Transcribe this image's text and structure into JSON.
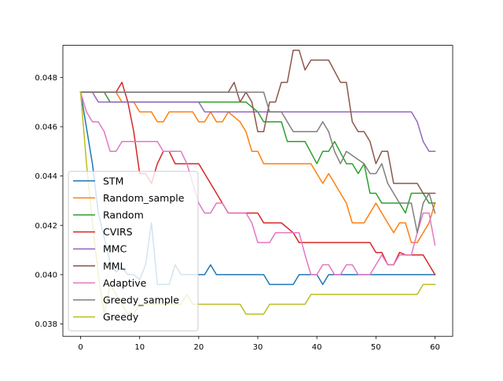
{
  "chart_data": {
    "type": "line",
    "title": "",
    "xlabel": "",
    "ylabel": "",
    "xlim": [
      -3,
      63
    ],
    "ylim": [
      0.0375,
      0.0493
    ],
    "xticks": [
      0,
      10,
      20,
      30,
      40,
      50,
      60
    ],
    "yticks": [
      0.038,
      0.04,
      0.042,
      0.044,
      0.046,
      0.048
    ],
    "xtick_labels": [
      "0",
      "10",
      "20",
      "30",
      "40",
      "50",
      "60"
    ],
    "ytick_labels": [
      "0.038",
      "0.040",
      "0.042",
      "0.044",
      "0.046",
      "0.048"
    ],
    "grid": false,
    "legend_position": "lower-left",
    "series": [
      {
        "name": "STM",
        "color": "#1f77b4",
        "points": [
          [
            0,
            0.0474
          ],
          [
            2,
            0.0445
          ],
          [
            3,
            0.0425
          ],
          [
            4,
            0.0415
          ],
          [
            5,
            0.0405
          ],
          [
            6,
            0.0401
          ],
          [
            7,
            0.0403
          ],
          [
            8,
            0.04
          ],
          [
            9,
            0.04
          ],
          [
            10,
            0.0398
          ],
          [
            11,
            0.0404
          ],
          [
            12,
            0.0421
          ],
          [
            13,
            0.0396
          ],
          [
            14,
            0.0396
          ],
          [
            15,
            0.0396
          ],
          [
            16,
            0.0404
          ],
          [
            17,
            0.04
          ],
          [
            18,
            0.04
          ],
          [
            21,
            0.04
          ],
          [
            22,
            0.0404
          ],
          [
            23,
            0.04
          ],
          [
            31,
            0.04
          ],
          [
            32,
            0.0396
          ],
          [
            36,
            0.0396
          ],
          [
            37,
            0.04
          ],
          [
            40,
            0.04
          ],
          [
            41,
            0.0396
          ],
          [
            42,
            0.04
          ],
          [
            60,
            0.04
          ]
        ]
      },
      {
        "name": "Random_sample",
        "color": "#ff7f0e",
        "points": [
          [
            0,
            0.0474
          ],
          [
            6,
            0.0474
          ],
          [
            7,
            0.047
          ],
          [
            9,
            0.047
          ],
          [
            10,
            0.0466
          ],
          [
            12,
            0.0466
          ],
          [
            13,
            0.0462
          ],
          [
            14,
            0.0462
          ],
          [
            15,
            0.0466
          ],
          [
            19,
            0.0466
          ],
          [
            20,
            0.0462
          ],
          [
            21,
            0.0462
          ],
          [
            22,
            0.0466
          ],
          [
            23,
            0.0462
          ],
          [
            24,
            0.0462
          ],
          [
            25,
            0.0466
          ],
          [
            27,
            0.0462
          ],
          [
            28,
            0.0458
          ],
          [
            29,
            0.045
          ],
          [
            30,
            0.045
          ],
          [
            31,
            0.0445
          ],
          [
            39,
            0.0445
          ],
          [
            40,
            0.0441
          ],
          [
            41,
            0.0437
          ],
          [
            42,
            0.0441
          ],
          [
            44,
            0.0433
          ],
          [
            45,
            0.0429
          ],
          [
            46,
            0.0421
          ],
          [
            48,
            0.0421
          ],
          [
            50,
            0.0429
          ],
          [
            51,
            0.0425
          ],
          [
            53,
            0.0417
          ],
          [
            54,
            0.0421
          ],
          [
            55,
            0.0421
          ],
          [
            56,
            0.0413
          ],
          [
            57,
            0.0413
          ],
          [
            59,
            0.0421
          ],
          [
            60,
            0.0429
          ]
        ]
      },
      {
        "name": "Random",
        "color": "#2ca02c",
        "points": [
          [
            0,
            0.0474
          ],
          [
            4,
            0.0474
          ],
          [
            5,
            0.047
          ],
          [
            20,
            0.047
          ],
          [
            28,
            0.047
          ],
          [
            30,
            0.0466
          ],
          [
            31,
            0.0462
          ],
          [
            34,
            0.0462
          ],
          [
            35,
            0.0454
          ],
          [
            38,
            0.0454
          ],
          [
            40,
            0.0445
          ],
          [
            41,
            0.045
          ],
          [
            42,
            0.045
          ],
          [
            43,
            0.0454
          ],
          [
            45,
            0.0445
          ],
          [
            46,
            0.0445
          ],
          [
            47,
            0.0441
          ],
          [
            48,
            0.0445
          ],
          [
            49,
            0.0433
          ],
          [
            50,
            0.0433
          ],
          [
            51,
            0.0429
          ],
          [
            54,
            0.0429
          ],
          [
            55,
            0.0425
          ],
          [
            56,
            0.0433
          ],
          [
            58,
            0.0433
          ],
          [
            59,
            0.0429
          ],
          [
            60,
            0.0429
          ]
        ]
      },
      {
        "name": "CVIRS",
        "color": "#d62728",
        "points": [
          [
            0,
            0.0474
          ],
          [
            6,
            0.0474
          ],
          [
            7,
            0.0478
          ],
          [
            8,
            0.047
          ],
          [
            9,
            0.0458
          ],
          [
            10,
            0.0441
          ],
          [
            11,
            0.0441
          ],
          [
            12,
            0.0437
          ],
          [
            13,
            0.0445
          ],
          [
            14,
            0.045
          ],
          [
            15,
            0.045
          ],
          [
            16,
            0.0445
          ],
          [
            20,
            0.0445
          ],
          [
            21,
            0.0441
          ],
          [
            22,
            0.0437
          ],
          [
            23,
            0.0433
          ],
          [
            24,
            0.0429
          ],
          [
            25,
            0.0425
          ],
          [
            30,
            0.0425
          ],
          [
            31,
            0.0421
          ],
          [
            34,
            0.0421
          ],
          [
            36,
            0.0417
          ],
          [
            37,
            0.0413
          ],
          [
            49,
            0.0413
          ],
          [
            50,
            0.0409
          ],
          [
            51,
            0.0409
          ],
          [
            52,
            0.0404
          ],
          [
            53,
            0.0404
          ],
          [
            54,
            0.0409
          ],
          [
            55,
            0.0408
          ],
          [
            58,
            0.0408
          ],
          [
            59,
            0.0404
          ],
          [
            60,
            0.04
          ]
        ]
      },
      {
        "name": "MMC",
        "color": "#9467bd",
        "points": [
          [
            0,
            0.0474
          ],
          [
            2,
            0.0474
          ],
          [
            3,
            0.047
          ],
          [
            20,
            0.047
          ],
          [
            21,
            0.0466
          ],
          [
            56,
            0.0466
          ],
          [
            57,
            0.0462
          ],
          [
            58,
            0.0454
          ],
          [
            59,
            0.045
          ],
          [
            60,
            0.045
          ]
        ]
      },
      {
        "name": "MML",
        "color": "#8c564b",
        "points": [
          [
            0,
            0.0474
          ],
          [
            25,
            0.0474
          ],
          [
            26,
            0.0478
          ],
          [
            27,
            0.047
          ],
          [
            28,
            0.0474
          ],
          [
            29,
            0.047
          ],
          [
            30,
            0.0458
          ],
          [
            31,
            0.0458
          ],
          [
            32,
            0.047
          ],
          [
            33,
            0.047
          ],
          [
            34,
            0.0478
          ],
          [
            35,
            0.0478
          ],
          [
            36,
            0.0491
          ],
          [
            37,
            0.0491
          ],
          [
            38,
            0.0483
          ],
          [
            39,
            0.0487
          ],
          [
            42,
            0.0487
          ],
          [
            44,
            0.0478
          ],
          [
            45,
            0.0478
          ],
          [
            46,
            0.0462
          ],
          [
            47,
            0.0458
          ],
          [
            48,
            0.0458
          ],
          [
            49,
            0.0454
          ],
          [
            50,
            0.0445
          ],
          [
            51,
            0.045
          ],
          [
            52,
            0.045
          ],
          [
            53,
            0.0437
          ],
          [
            57,
            0.0437
          ],
          [
            58,
            0.0433
          ],
          [
            60,
            0.0433
          ]
        ]
      },
      {
        "name": "Adaptive",
        "color": "#e377c2",
        "points": [
          [
            0,
            0.0474
          ],
          [
            1,
            0.0466
          ],
          [
            2,
            0.0462
          ],
          [
            3,
            0.0462
          ],
          [
            4,
            0.0458
          ],
          [
            5,
            0.045
          ],
          [
            6,
            0.045
          ],
          [
            7,
            0.0454
          ],
          [
            13,
            0.0454
          ],
          [
            14,
            0.045
          ],
          [
            17,
            0.045
          ],
          [
            18,
            0.0445
          ],
          [
            19,
            0.0437
          ],
          [
            20,
            0.0429
          ],
          [
            21,
            0.0425
          ],
          [
            22,
            0.0425
          ],
          [
            23,
            0.0429
          ],
          [
            24,
            0.0429
          ],
          [
            25,
            0.0425
          ],
          [
            28,
            0.0425
          ],
          [
            29,
            0.0421
          ],
          [
            30,
            0.0413
          ],
          [
            32,
            0.0413
          ],
          [
            33,
            0.0417
          ],
          [
            37,
            0.0417
          ],
          [
            38,
            0.0408
          ],
          [
            39,
            0.04
          ],
          [
            40,
            0.04
          ],
          [
            41,
            0.0404
          ],
          [
            42,
            0.0404
          ],
          [
            43,
            0.04
          ],
          [
            44,
            0.04
          ],
          [
            45,
            0.0404
          ],
          [
            46,
            0.0404
          ],
          [
            47,
            0.04
          ],
          [
            49,
            0.04
          ],
          [
            51,
            0.0408
          ],
          [
            52,
            0.0404
          ],
          [
            53,
            0.0404
          ],
          [
            54,
            0.0408
          ],
          [
            56,
            0.0408
          ],
          [
            57,
            0.0417
          ],
          [
            58,
            0.0425
          ],
          [
            59,
            0.0425
          ],
          [
            60,
            0.0412
          ]
        ]
      },
      {
        "name": "Greedy_sample",
        "color": "#7f7f7f",
        "points": [
          [
            0,
            0.0474
          ],
          [
            31,
            0.0474
          ],
          [
            32,
            0.0466
          ],
          [
            34,
            0.0466
          ],
          [
            35,
            0.0462
          ],
          [
            36,
            0.0458
          ],
          [
            40,
            0.0458
          ],
          [
            41,
            0.0462
          ],
          [
            42,
            0.0458
          ],
          [
            43,
            0.045
          ],
          [
            44,
            0.0445
          ],
          [
            45,
            0.045
          ],
          [
            48,
            0.0445
          ],
          [
            49,
            0.0441
          ],
          [
            50,
            0.0441
          ],
          [
            51,
            0.0445
          ],
          [
            52,
            0.0437
          ],
          [
            54,
            0.0429
          ],
          [
            56,
            0.0429
          ],
          [
            57,
            0.0417
          ],
          [
            58,
            0.0429
          ],
          [
            59,
            0.0433
          ],
          [
            60,
            0.0425
          ]
        ]
      },
      {
        "name": "Greedy",
        "color": "#bcbd22",
        "points": [
          [
            0,
            0.0474
          ],
          [
            1,
            0.0445
          ],
          [
            2,
            0.0421
          ],
          [
            3,
            0.04
          ],
          [
            4,
            0.0384
          ],
          [
            5,
            0.0396
          ],
          [
            6,
            0.0392
          ],
          [
            7,
            0.0388
          ],
          [
            8,
            0.0384
          ],
          [
            9,
            0.0384
          ],
          [
            10,
            0.0388
          ],
          [
            17,
            0.0388
          ],
          [
            18,
            0.0392
          ],
          [
            19,
            0.0388
          ],
          [
            27,
            0.0388
          ],
          [
            28,
            0.0384
          ],
          [
            31,
            0.0384
          ],
          [
            32,
            0.0388
          ],
          [
            38,
            0.0388
          ],
          [
            39,
            0.0392
          ],
          [
            57,
            0.0392
          ],
          [
            58,
            0.0396
          ],
          [
            60,
            0.0396
          ]
        ]
      }
    ]
  },
  "colors": {
    "axes_edge": "#000000",
    "legend_edge": "#cccccc",
    "background": "#ffffff"
  }
}
